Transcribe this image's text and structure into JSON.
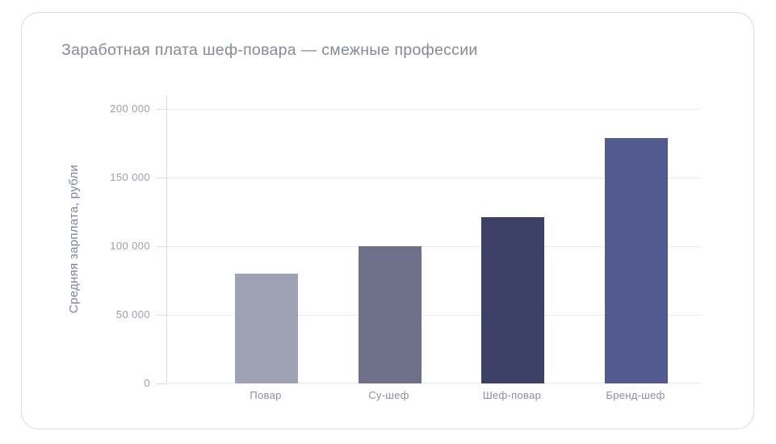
{
  "card": {
    "title": "Заработная плата шеф-повара — смежные профессии"
  },
  "chart_data": {
    "type": "bar",
    "title": "Заработная плата шеф-повара — смежные профессии",
    "xlabel": "",
    "ylabel": "Средняя зарплата, рубли",
    "ylim": [
      0,
      200000
    ],
    "grid": true,
    "legend": false,
    "categories": [
      "Повар",
      "Су-шеф",
      "Шеф-повар",
      "Бренд-шеф"
    ],
    "values": [
      80000,
      100000,
      121000,
      179000
    ],
    "bar_colors": [
      "#9fa1b5",
      "#6e7089",
      "#3d4168",
      "#525a8e"
    ],
    "yticks": [
      {
        "value": 0,
        "label": "0"
      },
      {
        "value": 50000,
        "label": "50 000"
      },
      {
        "value": 100000,
        "label": "100 000"
      },
      {
        "value": 150000,
        "label": "150 000"
      },
      {
        "value": 200000,
        "label": "200 000"
      }
    ]
  },
  "colors": {
    "bg": "#ffffff",
    "card_bg": "#ffffff",
    "card_border": "#d5dae7",
    "grid": "#e9ebf3",
    "axis": "#d9dce8",
    "title": "#848b94",
    "tick_label": "#9ba0af",
    "ylabel": "#7f83a1",
    "xtick_label": "#8b8fa0"
  }
}
